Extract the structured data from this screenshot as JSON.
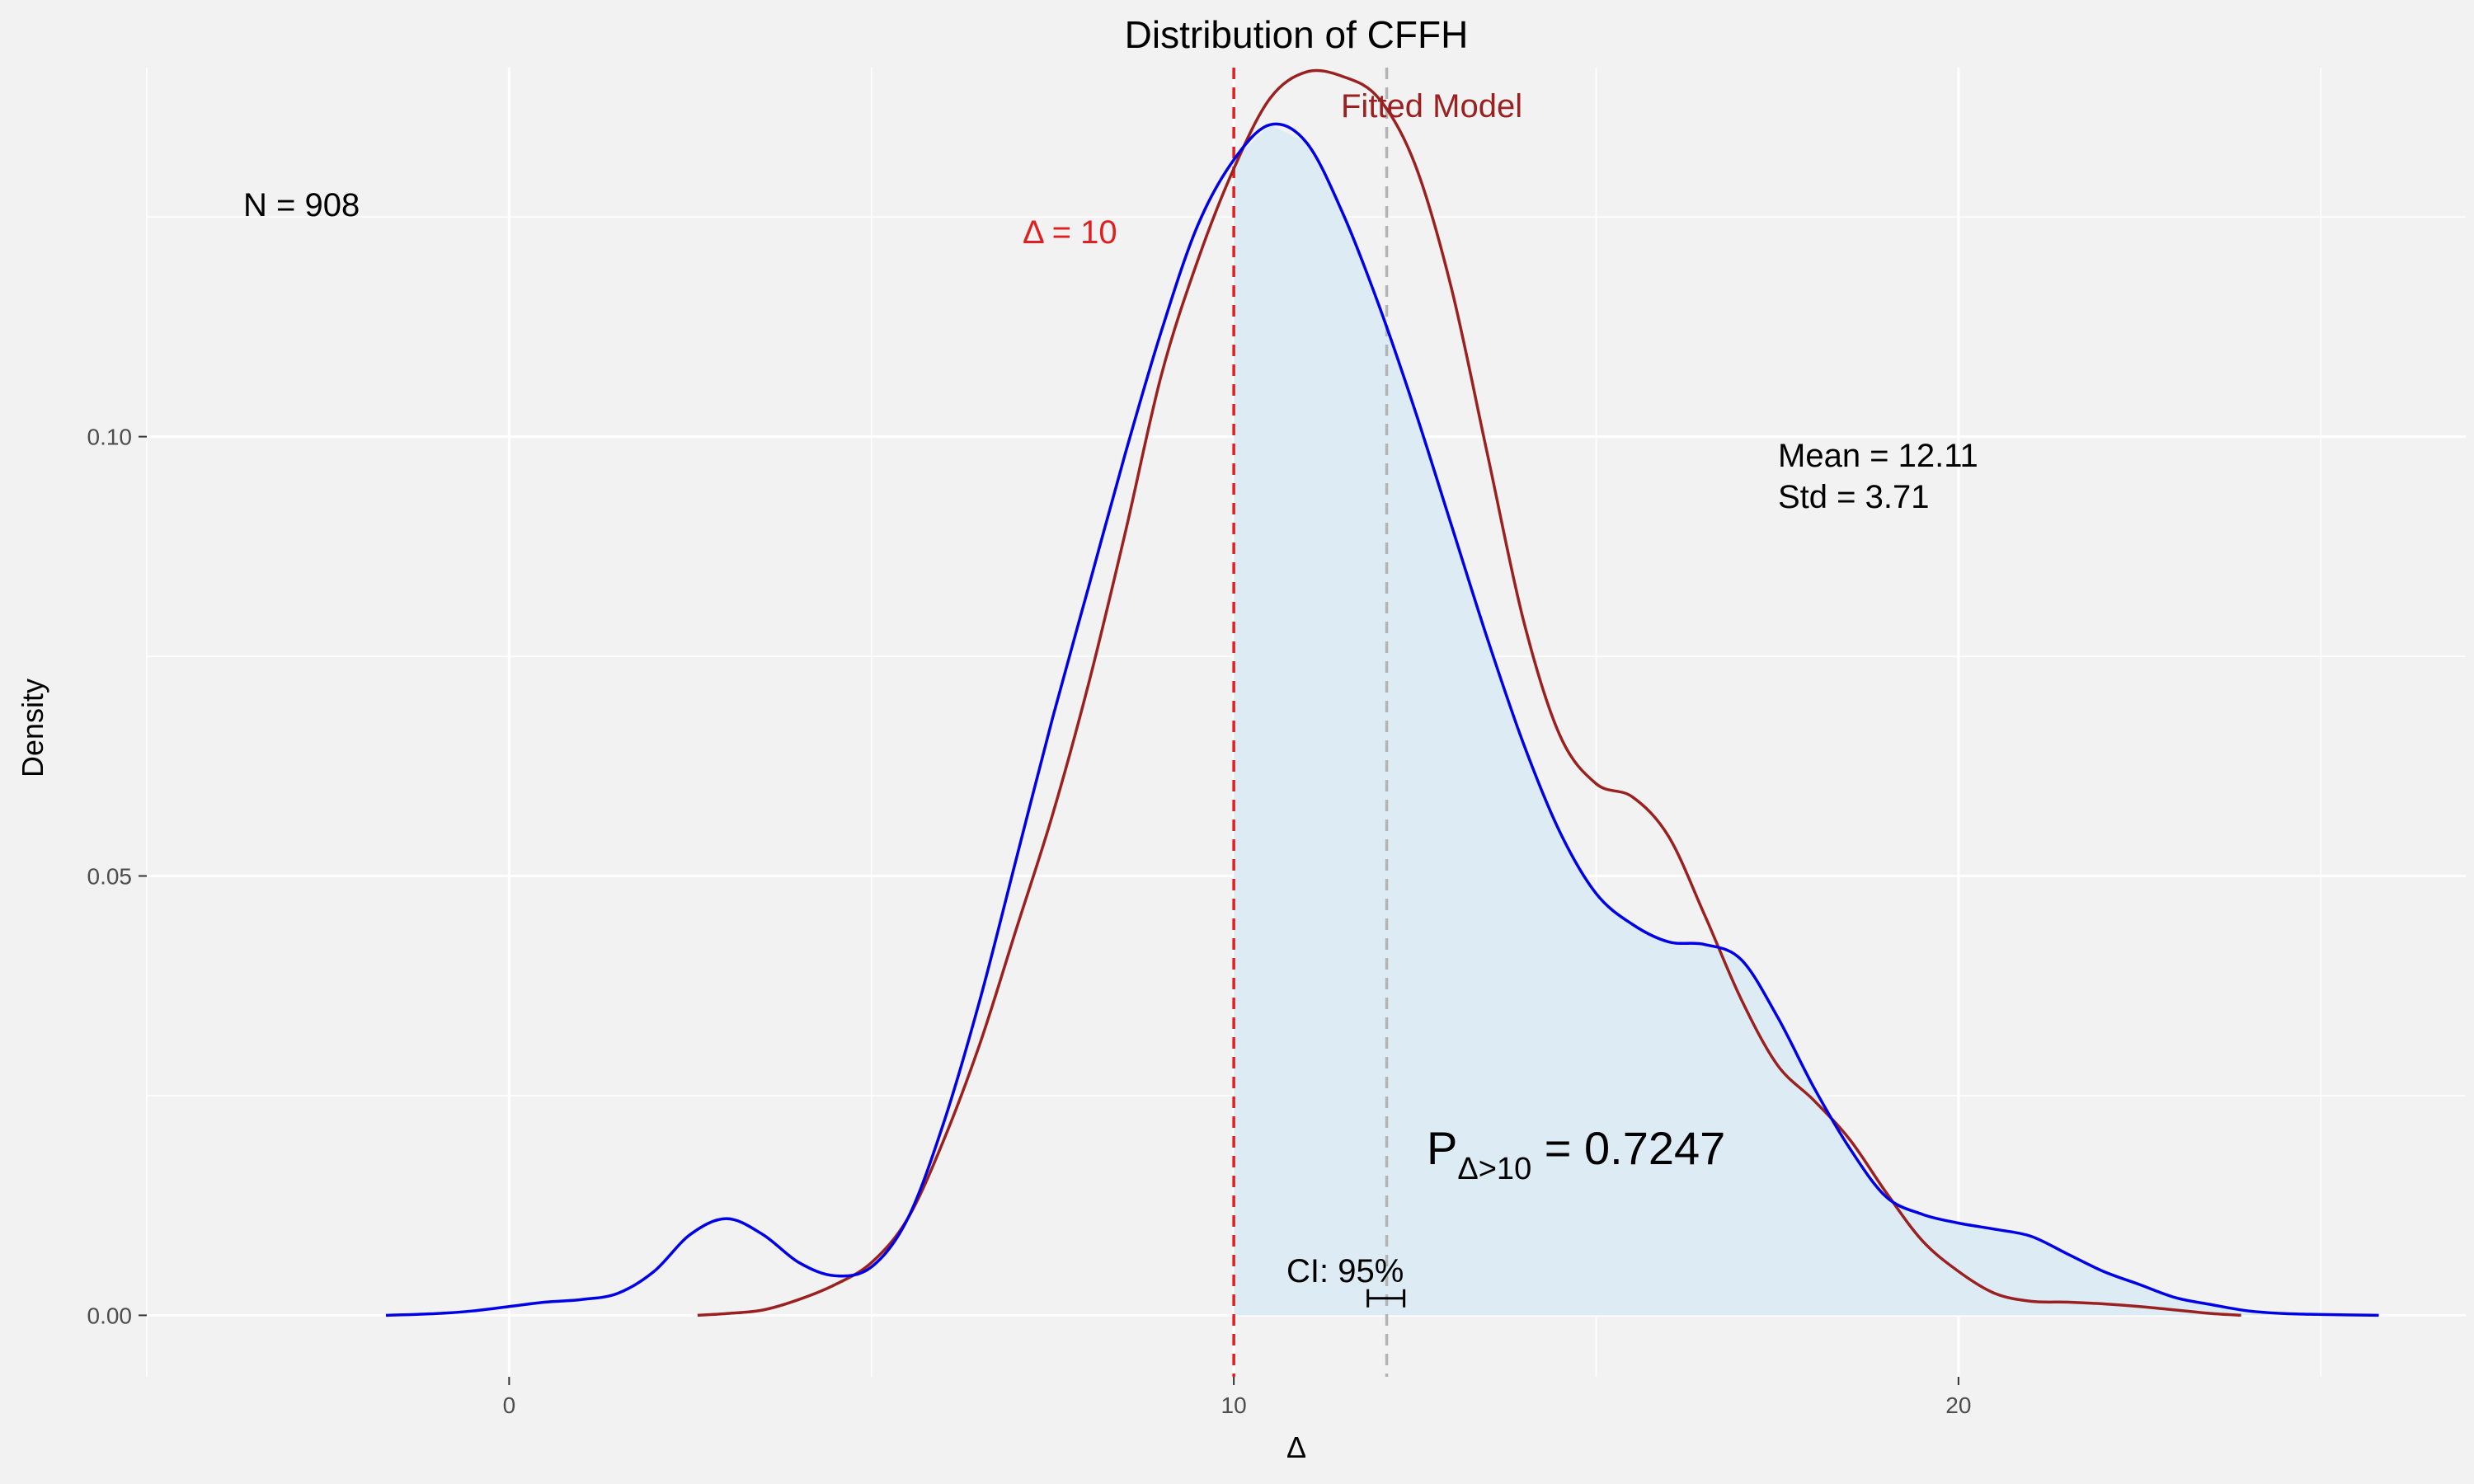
{
  "chart_data": {
    "type": "area",
    "title": "Distribution of CFFH",
    "xlabel": "Δ",
    "ylabel": "Density",
    "xlim": [
      -5,
      27
    ],
    "ylim": [
      -0.007,
      0.142
    ],
    "x_ticks": [
      0,
      10,
      20
    ],
    "y_ticks": [
      0.0,
      0.05,
      0.1
    ],
    "x_tick_labels": [
      "0",
      "10",
      "20"
    ],
    "y_tick_labels": [
      "0.00",
      "0.05",
      "0.10"
    ],
    "grid": true,
    "series": [
      {
        "color": "#0000e6",
        "fill_from": 10,
        "fill_color": "#ddecf4",
        "x": [
          -1.7,
          -1.0,
          -0.5,
          0,
          0.5,
          1.0,
          1.5,
          2.0,
          2.5,
          3.0,
          3.5,
          4.0,
          4.5,
          5.0,
          5.5,
          6.0,
          6.5,
          7.0,
          7.5,
          8.0,
          8.5,
          9.0,
          9.5,
          10.0,
          10.5,
          11.0,
          11.5,
          12.0,
          12.5,
          13.0,
          13.5,
          14.0,
          14.5,
          15.0,
          15.5,
          16.0,
          16.5,
          17.0,
          17.5,
          18.0,
          18.5,
          19.0,
          19.5,
          20.0,
          20.5,
          21.0,
          21.5,
          22.0,
          22.5,
          23.0,
          23.5,
          24.0,
          24.5,
          25.0,
          25.8
        ],
        "y": [
          0.0,
          0.0002,
          0.0005,
          0.001,
          0.0015,
          0.0018,
          0.0025,
          0.005,
          0.0092,
          0.011,
          0.0092,
          0.006,
          0.0045,
          0.0055,
          0.011,
          0.022,
          0.036,
          0.052,
          0.068,
          0.083,
          0.098,
          0.112,
          0.124,
          0.1315,
          0.1355,
          0.1335,
          0.1255,
          0.115,
          0.103,
          0.09,
          0.077,
          0.065,
          0.055,
          0.048,
          0.0445,
          0.0425,
          0.0422,
          0.0405,
          0.034,
          0.026,
          0.019,
          0.0135,
          0.0115,
          0.0105,
          0.0098,
          0.009,
          0.007,
          0.005,
          0.0035,
          0.002,
          0.0012,
          0.0005,
          0.0002,
          0.0001,
          0.0
        ]
      },
      {
        "color": "#9b2020",
        "x": [
          2.6,
          3.0,
          3.5,
          4.0,
          4.5,
          5.0,
          5.5,
          6.0,
          6.5,
          7.0,
          7.5,
          8.0,
          8.5,
          9.0,
          9.5,
          10.0,
          10.5,
          11.0,
          11.5,
          12.0,
          12.5,
          13.0,
          13.5,
          14.0,
          14.5,
          15.0,
          15.5,
          16.0,
          16.5,
          17.0,
          17.5,
          18.0,
          18.5,
          19.0,
          19.5,
          20.0,
          20.5,
          21.0,
          21.5,
          22.0,
          22.5,
          23.0,
          23.5,
          23.9
        ],
        "y": [
          0.0,
          0.0002,
          0.0006,
          0.0018,
          0.0035,
          0.006,
          0.011,
          0.02,
          0.031,
          0.044,
          0.057,
          0.072,
          0.089,
          0.107,
          0.12,
          0.1305,
          0.1385,
          0.1415,
          0.141,
          0.1385,
          0.131,
          0.117,
          0.098,
          0.079,
          0.066,
          0.0605,
          0.059,
          0.0545,
          0.0455,
          0.036,
          0.0285,
          0.0245,
          0.02,
          0.014,
          0.0085,
          0.005,
          0.0025,
          0.0016,
          0.0015,
          0.0013,
          0.001,
          0.0006,
          0.0002,
          0.0
        ]
      }
    ],
    "reference_lines": [
      {
        "x": 10,
        "color": "#e02020",
        "style": "dashed"
      },
      {
        "x": 12.11,
        "color": "#b4b4b4",
        "style": "dashed"
      }
    ],
    "ci_bar": {
      "x_low": 11.85,
      "x_high": 12.35,
      "y": 0.001
    },
    "annotations": {
      "n_text": "N = 908",
      "delta_label": "Δ = 10",
      "fitted_label": "Fitted Model",
      "mean_text": "Mean = 12.11",
      "std_text": "Std = 3.71",
      "prob_main": "P",
      "prob_sub": "Δ>10",
      "prob_value": " = 0.7247",
      "ci_text": "CI: 95%"
    },
    "colors": {
      "background": "#f2f2f2",
      "grid": "#ffffff",
      "empirical": "#0000e6",
      "fitted": "#9b2020",
      "threshold": "#e02020",
      "mean_line": "#b4b4b4",
      "fill": "#ddecf4"
    }
  }
}
